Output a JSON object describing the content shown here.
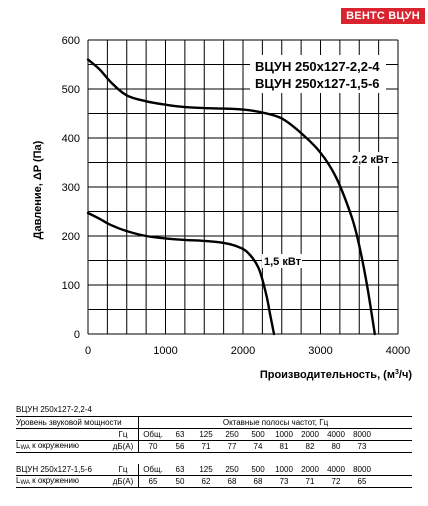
{
  "brand_badge": "ВЕНТС ВЦУН",
  "chart_data": {
    "type": "line",
    "title": "ВЦУН 250x127-2,2-4\nВЦУН 250x127-1,5-6",
    "title_lines": [
      "ВЦУН 250x127-2,2-4",
      "ВЦУН 250x127-1,5-6"
    ],
    "xlabel": "Производительность, (м³/ч)",
    "xlabel_main": "Производительность, (м",
    "xlabel_sup": "3",
    "xlabel_tail": "/ч)",
    "ylabel": "Давление, ΔP (Па)",
    "xlim": [
      0,
      4000
    ],
    "ylim": [
      0,
      600
    ],
    "x_ticks": [
      "0",
      "1000",
      "2000",
      "3000",
      "4000"
    ],
    "y_ticks": [
      "0",
      "100",
      "200",
      "300",
      "400",
      "500",
      "600"
    ],
    "grid": true,
    "series": [
      {
        "name": "2,2 кВт",
        "x": [
          0,
          150,
          300,
          500,
          750,
          1000,
          1250,
          1500,
          1750,
          2000,
          2250,
          2500,
          2750,
          3000,
          3200,
          3400,
          3500,
          3600,
          3700
        ],
        "y": [
          560,
          540,
          513,
          487,
          475,
          468,
          463,
          461,
          460,
          458,
          452,
          440,
          410,
          370,
          320,
          240,
          180,
          100,
          0
        ]
      },
      {
        "name": "1,5 кВт",
        "x": [
          0,
          150,
          300,
          500,
          750,
          1000,
          1250,
          1500,
          1750,
          1900,
          2050,
          2200,
          2300,
          2350,
          2400
        ],
        "y": [
          247,
          235,
          222,
          210,
          200,
          195,
          192,
          190,
          186,
          180,
          168,
          135,
          80,
          40,
          0
        ]
      }
    ]
  },
  "table1": {
    "title": "ВЦУН 250x127-2,2-4",
    "header_label": "Уровень звуковой мощности",
    "header_bands": "Октавные полосы частот, Гц",
    "hz_label": "Гц",
    "columns": [
      "Общ.",
      "63",
      "125",
      "250",
      "500",
      "1000",
      "2000",
      "4000",
      "8000"
    ],
    "row_label_main": "L",
    "row_label_sub": "WA",
    "row_label_tail": " к окружению",
    "row_unit": "дБ(А)",
    "values": [
      "70",
      "56",
      "71",
      "77",
      "74",
      "81",
      "82",
      "80",
      "73"
    ]
  },
  "table2": {
    "title": "ВЦУН 250x127-1,5-6",
    "hz_label": "Гц",
    "columns": [
      "Общ.",
      "63",
      "125",
      "250",
      "500",
      "1000",
      "2000",
      "4000",
      "8000"
    ],
    "row_label_main": "L",
    "row_label_sub": "WA",
    "row_label_tail": " к окружению",
    "row_unit": "дБ(А)",
    "values": [
      "65",
      "50",
      "62",
      "68",
      "68",
      "73",
      "71",
      "72",
      "65"
    ]
  }
}
